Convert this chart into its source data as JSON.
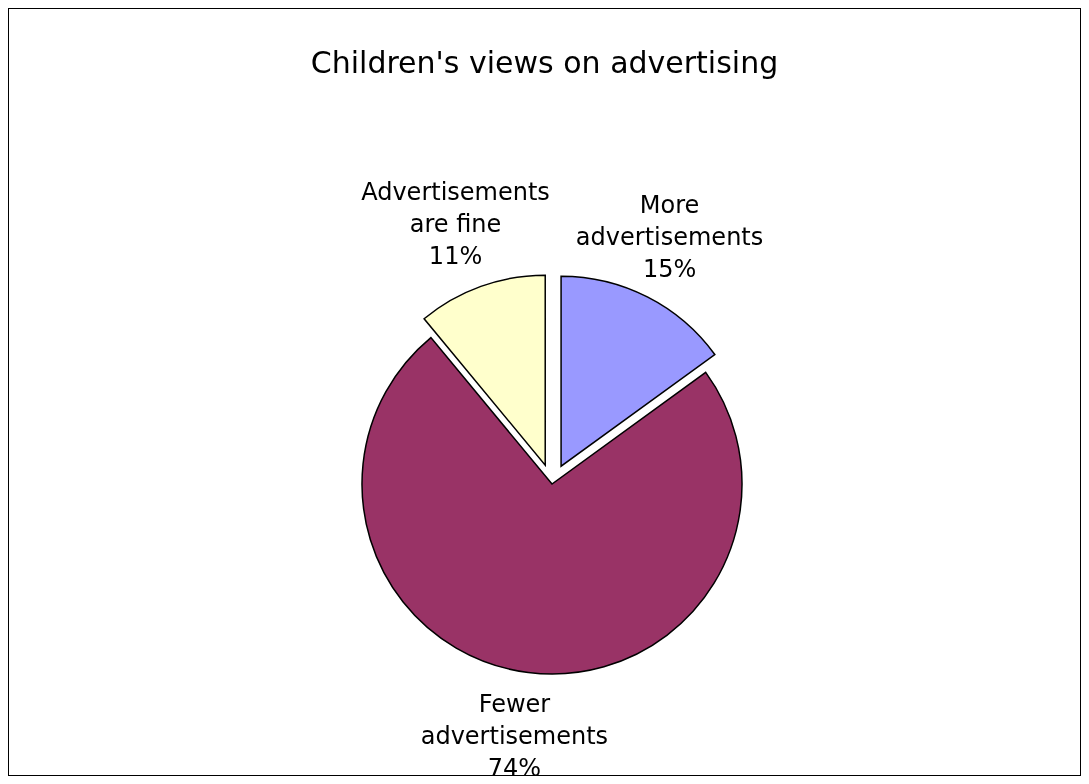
{
  "chart_data": {
    "type": "pie",
    "title": "Children's views on advertising",
    "categories": [
      "More advertisements",
      "Fewer advertisements",
      "Advertisements are fine"
    ],
    "values": [
      15,
      74,
      11
    ],
    "colors": [
      "#9999ff",
      "#993366",
      "#ffffcc"
    ],
    "value_labels": [
      "15%",
      "74%",
      "11%"
    ]
  }
}
